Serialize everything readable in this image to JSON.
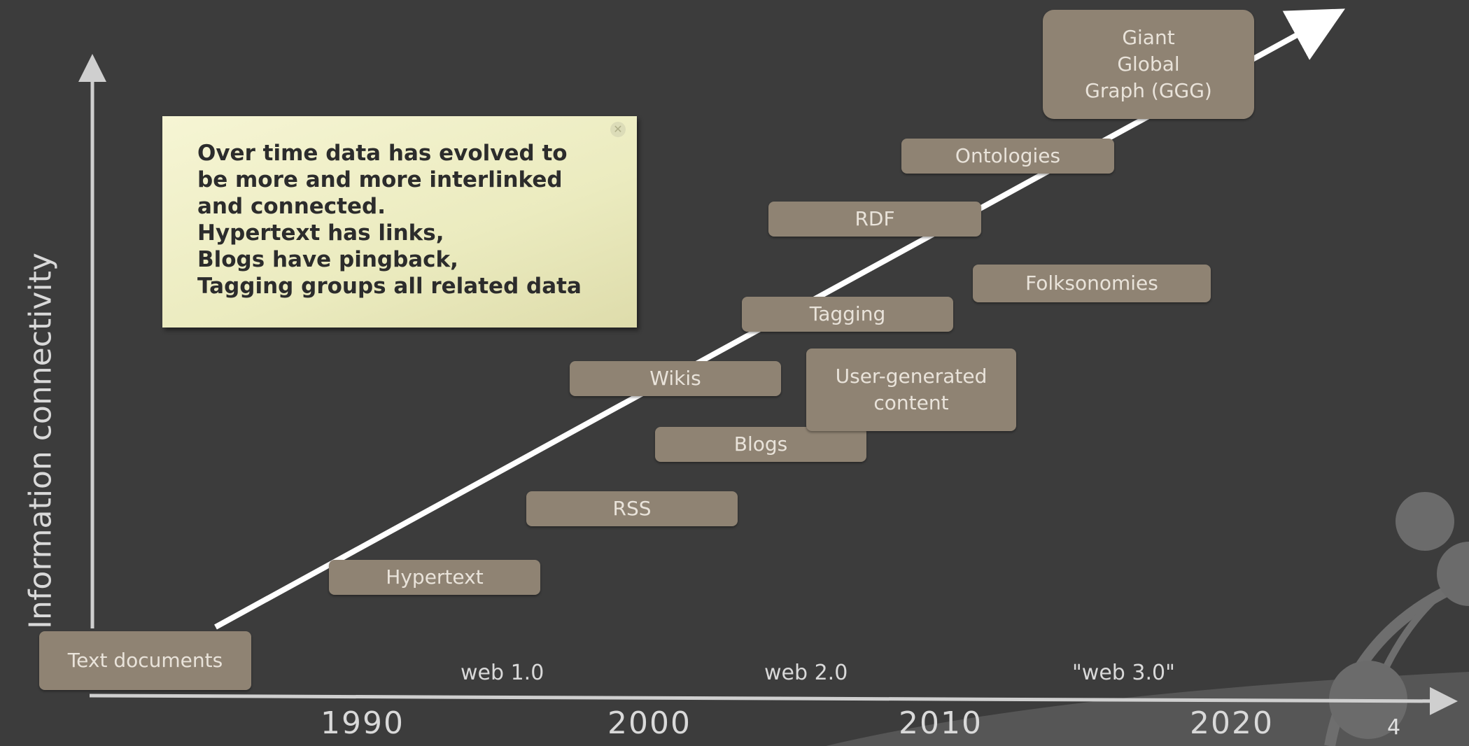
{
  "y_axis": {
    "label": "Information connectivity"
  },
  "note": {
    "text": "Over time data has evolved to\nbe more and more interlinked\nand connected.\nHypertext has links,\nBlogs have pingback,\nTagging groups all related data"
  },
  "eras": {
    "web1": "web 1.0",
    "web2": "web 2.0",
    "web3": "\"web 3.0\""
  },
  "years": [
    "1990",
    "2000",
    "2010",
    "2020"
  ],
  "page_number": "4",
  "boxes": {
    "text_documents": "Text documents",
    "hypertext": "Hypertext",
    "rss": "RSS",
    "blogs": "Blogs",
    "wikis": "Wikis",
    "user_generated_content": "User-generated\ncontent",
    "tagging": "Tagging",
    "folksonomies": "Folksonomies",
    "rdf": "RDF",
    "ontologies": "Ontologies",
    "ggg": "Giant\nGlobal\nGraph (GGG)"
  },
  "colors": {
    "background": "#3c3c3c",
    "box": "#8f8373",
    "box_text": "#e9e3da",
    "trend_arrow": "#ffffff",
    "axes": "#cfcfcf",
    "note_background": "#f2f2cc"
  },
  "icons": [
    "arrow-up-icon",
    "arrow-right-icon",
    "trend-arrow-icon",
    "close-icon",
    "decorative-circles"
  ]
}
